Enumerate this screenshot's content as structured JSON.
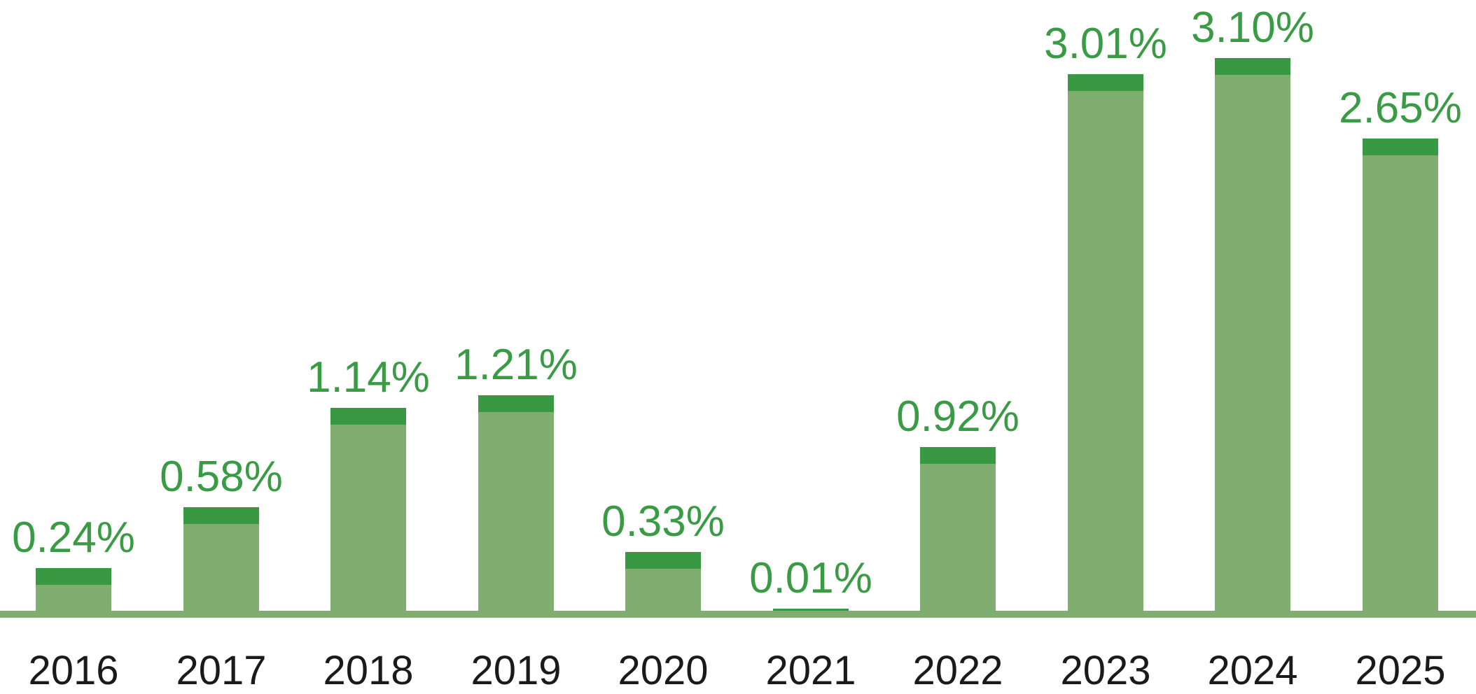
{
  "chart_data": {
    "type": "bar",
    "title": "",
    "xlabel": "",
    "ylabel": "",
    "categories": [
      "2016",
      "2017",
      "2018",
      "2019",
      "2020",
      "2021",
      "2022",
      "2023",
      "2024",
      "2025"
    ],
    "values": [
      0.24,
      0.58,
      1.14,
      1.21,
      0.33,
      0.01,
      0.92,
      3.01,
      3.1,
      2.65
    ],
    "value_labels": [
      "0.24%",
      "0.58%",
      "1.14%",
      "1.21%",
      "0.33%",
      "0.01%",
      "0.92%",
      "3.01%",
      "3.10%",
      "2.65%"
    ],
    "ylim": [
      0,
      3.4
    ],
    "grid": false,
    "legend": null,
    "bar_style": "light body with dark top cap, flush on thick baseline",
    "colors": {
      "background": "#ffffff",
      "bar_body": "#80ad70",
      "bar_cap": "#399943",
      "baseline": "#80ad70",
      "value_label_text": "#3a9b45",
      "year_label_text": "#1a1a1a"
    }
  }
}
